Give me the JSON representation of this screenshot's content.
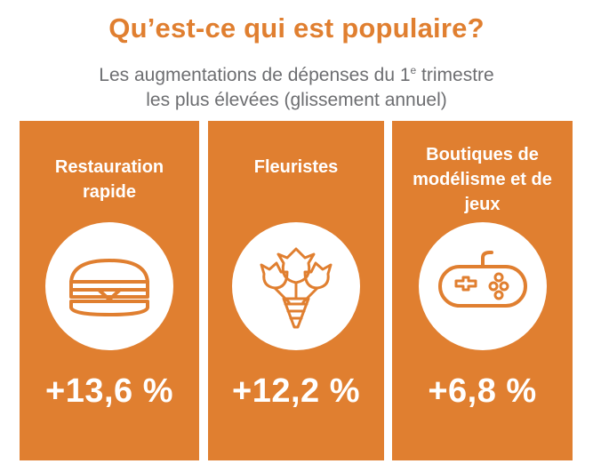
{
  "colors": {
    "accent": "#e07f30",
    "subtitle": "#6d6e71",
    "text_on_accent": "#ffffff"
  },
  "header": {
    "title": "Qu’est-ce qui est populaire?",
    "subtitle_line1_before": "Les augmentations de dépenses du 1",
    "subtitle_line1_sup": "e",
    "subtitle_line1_after": " trimestre",
    "subtitle_line2": "les plus élevées (glissement annuel)"
  },
  "cards": [
    {
      "title": "Restauration rapide",
      "icon": "burger-icon",
      "value": "+13,6 %"
    },
    {
      "title": "Fleuristes",
      "icon": "flower-bouquet-icon",
      "value": "+12,2 %"
    },
    {
      "title": "Boutiques de modélisme et de jeux",
      "icon": "game-controller-icon",
      "value": "+6,8 %"
    }
  ]
}
